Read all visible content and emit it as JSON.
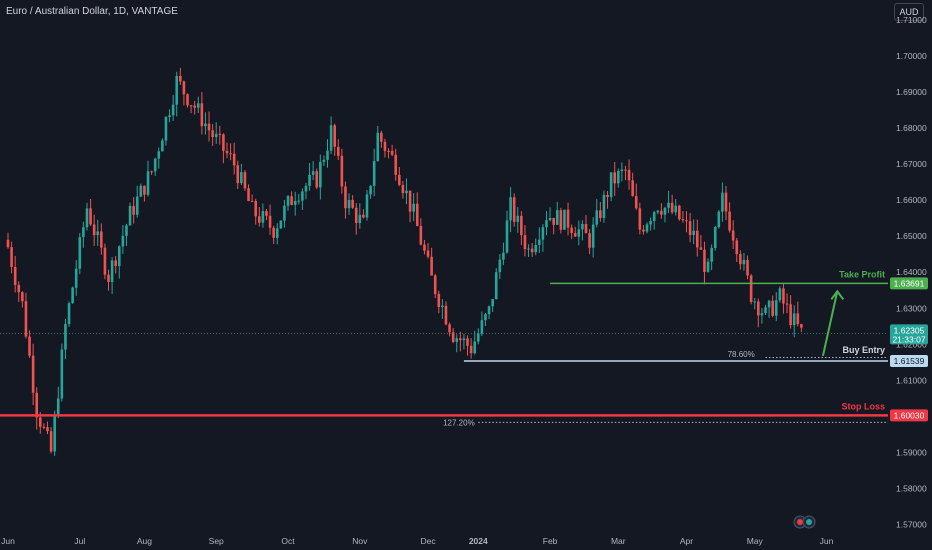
{
  "header": {
    "title": "Euro / Australian Dollar, 1D, VANTAGE",
    "currency": "AUD"
  },
  "colors": {
    "background": "#141823",
    "up": "#26a69a",
    "down": "#ef5350",
    "take_profit": "#4caf50",
    "stop_loss": "#f23645",
    "entry": "#bbd9f0",
    "last_price": "#26a69a"
  },
  "chart_data": {
    "type": "candlestick",
    "symbol": "Euro / Australian Dollar",
    "interval": "1D",
    "broker": "VANTAGE",
    "grid": false,
    "y_axis_position": "right",
    "ylim": [
      1.5685,
      1.7155
    ],
    "y_ticks": [
      "1.71000",
      "1.70000",
      "1.69000",
      "1.68000",
      "1.67000",
      "1.66000",
      "1.65000",
      "1.64000",
      "1.63000",
      "1.62000",
      "1.61000",
      "1.60000",
      "1.59000",
      "1.58000",
      "1.57000"
    ],
    "x_ticks": [
      "Jun",
      "Jul",
      "Aug",
      "Sep",
      "Oct",
      "Nov",
      "Dec",
      "2024",
      "Feb",
      "Mar",
      "Apr",
      "May",
      "Jun"
    ],
    "close_path": [
      {
        "day": 0,
        "close": 1.647
      },
      {
        "day": 4,
        "close": 1.631
      },
      {
        "day": 8,
        "close": 1.602
      },
      {
        "day": 12,
        "close": 1.59
      },
      {
        "day": 16,
        "close": 1.625
      },
      {
        "day": 22,
        "close": 1.658
      },
      {
        "day": 28,
        "close": 1.639
      },
      {
        "day": 34,
        "close": 1.656
      },
      {
        "day": 40,
        "close": 1.668
      },
      {
        "day": 47,
        "close": 1.693
      },
      {
        "day": 52,
        "close": 1.686
      },
      {
        "day": 57,
        "close": 1.678
      },
      {
        "day": 63,
        "close": 1.67
      },
      {
        "day": 68,
        "close": 1.657
      },
      {
        "day": 74,
        "close": 1.652
      },
      {
        "day": 80,
        "close": 1.662
      },
      {
        "day": 86,
        "close": 1.666
      },
      {
        "day": 90,
        "close": 1.679
      },
      {
        "day": 94,
        "close": 1.66
      },
      {
        "day": 99,
        "close": 1.653
      },
      {
        "day": 103,
        "close": 1.678
      },
      {
        "day": 108,
        "close": 1.67
      },
      {
        "day": 113,
        "close": 1.656
      },
      {
        "day": 118,
        "close": 1.638
      },
      {
        "day": 124,
        "close": 1.623
      },
      {
        "day": 129,
        "close": 1.619
      },
      {
        "day": 134,
        "close": 1.629
      },
      {
        "day": 140,
        "close": 1.658
      },
      {
        "day": 145,
        "close": 1.646
      },
      {
        "day": 150,
        "close": 1.656
      },
      {
        "day": 156,
        "close": 1.654
      },
      {
        "day": 162,
        "close": 1.649
      },
      {
        "day": 168,
        "close": 1.665
      },
      {
        "day": 172,
        "close": 1.668
      },
      {
        "day": 176,
        "close": 1.652
      },
      {
        "day": 181,
        "close": 1.659
      },
      {
        "day": 186,
        "close": 1.656
      },
      {
        "day": 191,
        "close": 1.65
      },
      {
        "day": 195,
        "close": 1.64
      },
      {
        "day": 199,
        "close": 1.66
      },
      {
        "day": 203,
        "close": 1.648
      },
      {
        "day": 207,
        "close": 1.634
      },
      {
        "day": 211,
        "close": 1.628
      },
      {
        "day": 215,
        "close": 1.633
      },
      {
        "day": 219,
        "close": 1.626
      },
      {
        "day": 221,
        "close": 1.6231
      }
    ],
    "last_price": "1.62305",
    "countdown": "21:33:07",
    "levels": [
      {
        "key": "take_profit",
        "label": "Take Profit",
        "value": 1.63691,
        "tag": "1.63691"
      },
      {
        "key": "entry",
        "label": "Buy Entry",
        "value": 1.61539,
        "tag": "1.61539",
        "fib": "78.60%"
      },
      {
        "key": "stop_loss",
        "label": "Stop Loss",
        "value": 1.6003,
        "tag": "1.60030",
        "fib": "127.20%"
      }
    ]
  }
}
